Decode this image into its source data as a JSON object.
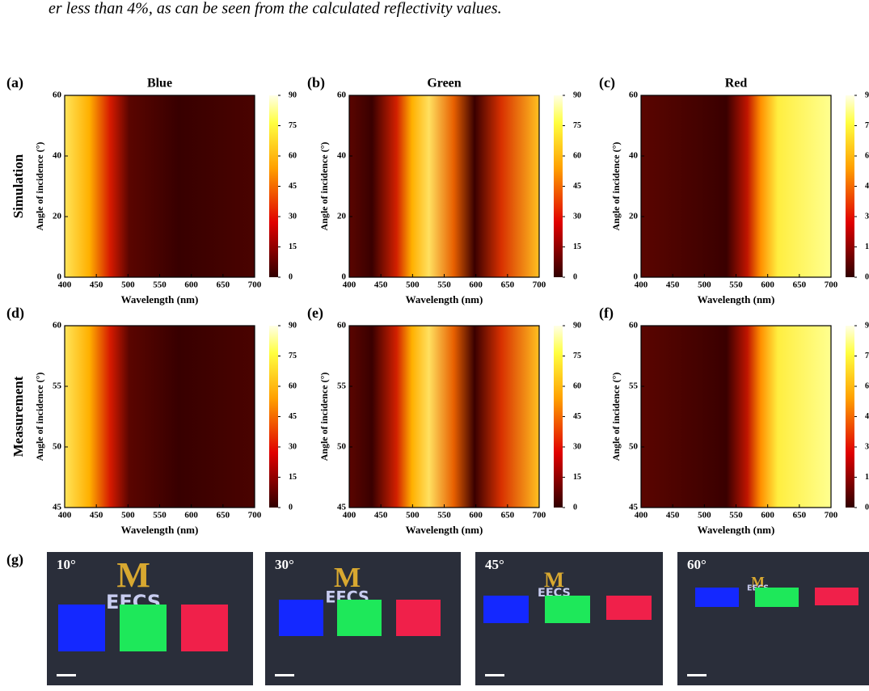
{
  "text_fragment": "er less than 4%, as can be seen from the calculated reflectivity values.",
  "columns": [
    "Blue",
    "Green",
    "Red"
  ],
  "panel_labels": [
    "(a)",
    "(b)",
    "(c)",
    "(d)",
    "(e)",
    "(f)"
  ],
  "rows": [
    {
      "label": "Simulation",
      "ylim": [
        0,
        60
      ],
      "yticks": [
        0,
        20,
        40,
        60
      ]
    },
    {
      "label": "Measurement",
      "ylim": [
        45,
        60
      ],
      "yticks": [
        45,
        50,
        55,
        60
      ]
    }
  ],
  "xlim": [
    400,
    700
  ],
  "xticks": [
    400,
    450,
    500,
    550,
    600,
    650,
    700
  ],
  "xlabel": "Wavelength (nm)",
  "ylabel": "Angle of incidence (°)",
  "colorbar": {
    "clim": [
      0,
      90
    ],
    "ticks": [
      0,
      15,
      30,
      45,
      60,
      75,
      90
    ]
  },
  "photos": {
    "label": "(g)",
    "angles": [
      "10°",
      "30°",
      "45°",
      "60°"
    ],
    "logo": "M",
    "logo_text": "EECS"
  }
}
